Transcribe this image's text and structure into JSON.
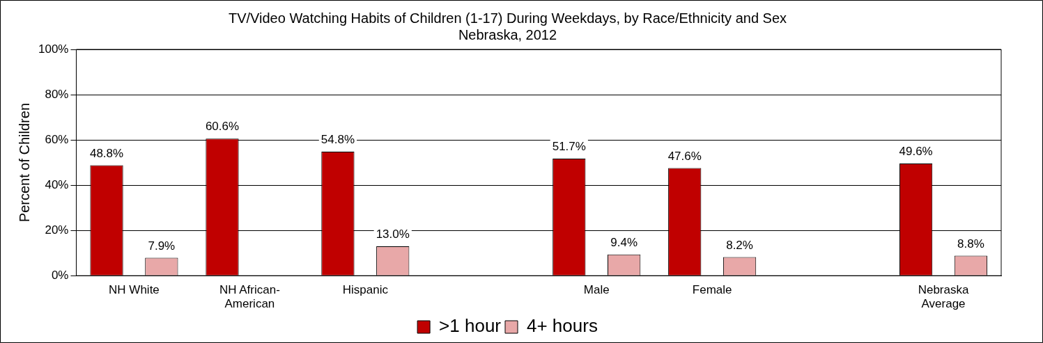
{
  "chart_data": {
    "type": "bar",
    "title": "TV/Video Watching Habits of Children (1-17) During Weekdays, by Race/Ethnicity and Sex\nNebraska, 2012",
    "ylabel": "Percent of Children",
    "categories": [
      "NH White",
      "NH African-American",
      "Hispanic",
      null,
      "Male",
      "Female",
      null,
      "Nebraska Average"
    ],
    "series": [
      {
        "name": ">1 hour",
        "color": "#c00000",
        "values": [
          48.8,
          60.6,
          54.8,
          null,
          51.7,
          47.6,
          null,
          49.6
        ],
        "value_labels": [
          "48.8%",
          "60.6%",
          "54.8%",
          null,
          "51.7%",
          "47.6%",
          null,
          "49.6%"
        ]
      },
      {
        "name": "4+ hours",
        "color": "#e8a8a8",
        "values": [
          7.9,
          null,
          13.0,
          null,
          9.4,
          8.2,
          null,
          8.8
        ],
        "value_labels": [
          "7.9%",
          null,
          "13.0%",
          null,
          "9.4%",
          "8.2%",
          null,
          "8.8%"
        ]
      }
    ],
    "ylim": [
      0,
      100
    ],
    "yticks": [
      {
        "value": 0,
        "label": "0%"
      },
      {
        "value": 20,
        "label": "20%"
      },
      {
        "value": 40,
        "label": "40%"
      },
      {
        "value": 60,
        "label": "60%"
      },
      {
        "value": 80,
        "label": "80%"
      },
      {
        "value": 100,
        "label": "100%"
      }
    ],
    "grid": "y",
    "legend": "bottom"
  }
}
